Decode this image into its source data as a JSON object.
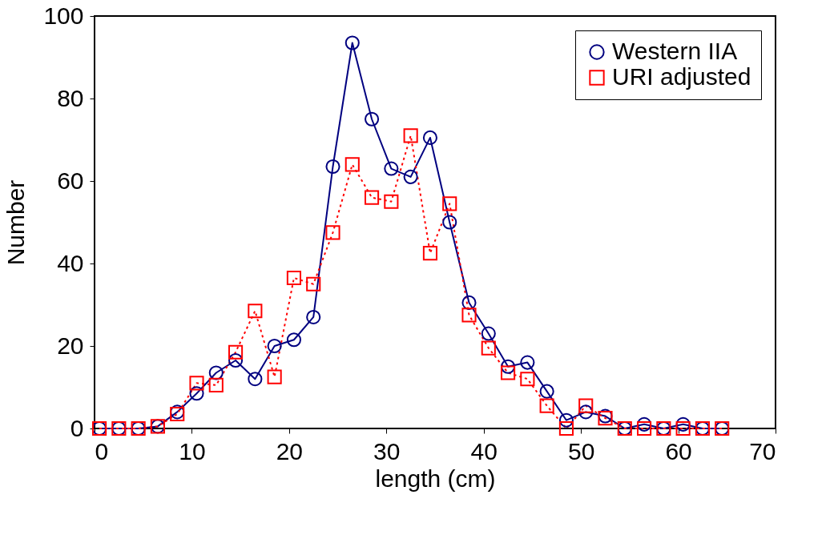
{
  "chart_data": {
    "type": "line",
    "xlabel": "length (cm)",
    "ylabel": "Number",
    "x": [
      0.5,
      2.5,
      4.5,
      6.5,
      8.5,
      10.5,
      12.5,
      14.5,
      16.5,
      18.5,
      20.5,
      22.5,
      24.5,
      26.5,
      28.5,
      30.5,
      32.5,
      34.5,
      36.5,
      38.5,
      40.5,
      42.5,
      44.5,
      46.5,
      48.5,
      50.5,
      52.5,
      54.5,
      56.5,
      58.5,
      60.5,
      62.5,
      64.5
    ],
    "series": [
      {
        "name": "Western IIA",
        "color": "#000080",
        "marker": "circle",
        "line_style": "solid",
        "values": [
          0,
          0,
          0,
          0.5,
          4,
          8.5,
          13.5,
          16.5,
          12,
          20,
          21.5,
          27,
          63.5,
          93.5,
          75,
          63,
          61,
          70.5,
          50,
          30.5,
          23,
          15,
          16,
          9,
          2,
          4,
          3,
          0,
          1,
          0,
          1,
          0,
          0
        ]
      },
      {
        "name": "URI adjusted",
        "color": "#ff0000",
        "marker": "square",
        "line_style": "dotted",
        "values": [
          0,
          0,
          0,
          0.5,
          3.5,
          11,
          10.5,
          18.5,
          28.5,
          12.5,
          36.5,
          35,
          47.5,
          64,
          56,
          55,
          71,
          42.5,
          54.5,
          27.5,
          19.5,
          13.5,
          12,
          5.5,
          0,
          5.5,
          2.5,
          0,
          0,
          0,
          0,
          0,
          0
        ]
      }
    ],
    "xlim": [
      0,
      70
    ],
    "xticks": [
      0,
      10,
      20,
      30,
      40,
      50,
      60,
      70
    ],
    "ylim": [
      0,
      100
    ],
    "yticks": [
      0,
      20,
      40,
      60,
      80,
      100
    ],
    "grid": false,
    "legend": "top right"
  }
}
